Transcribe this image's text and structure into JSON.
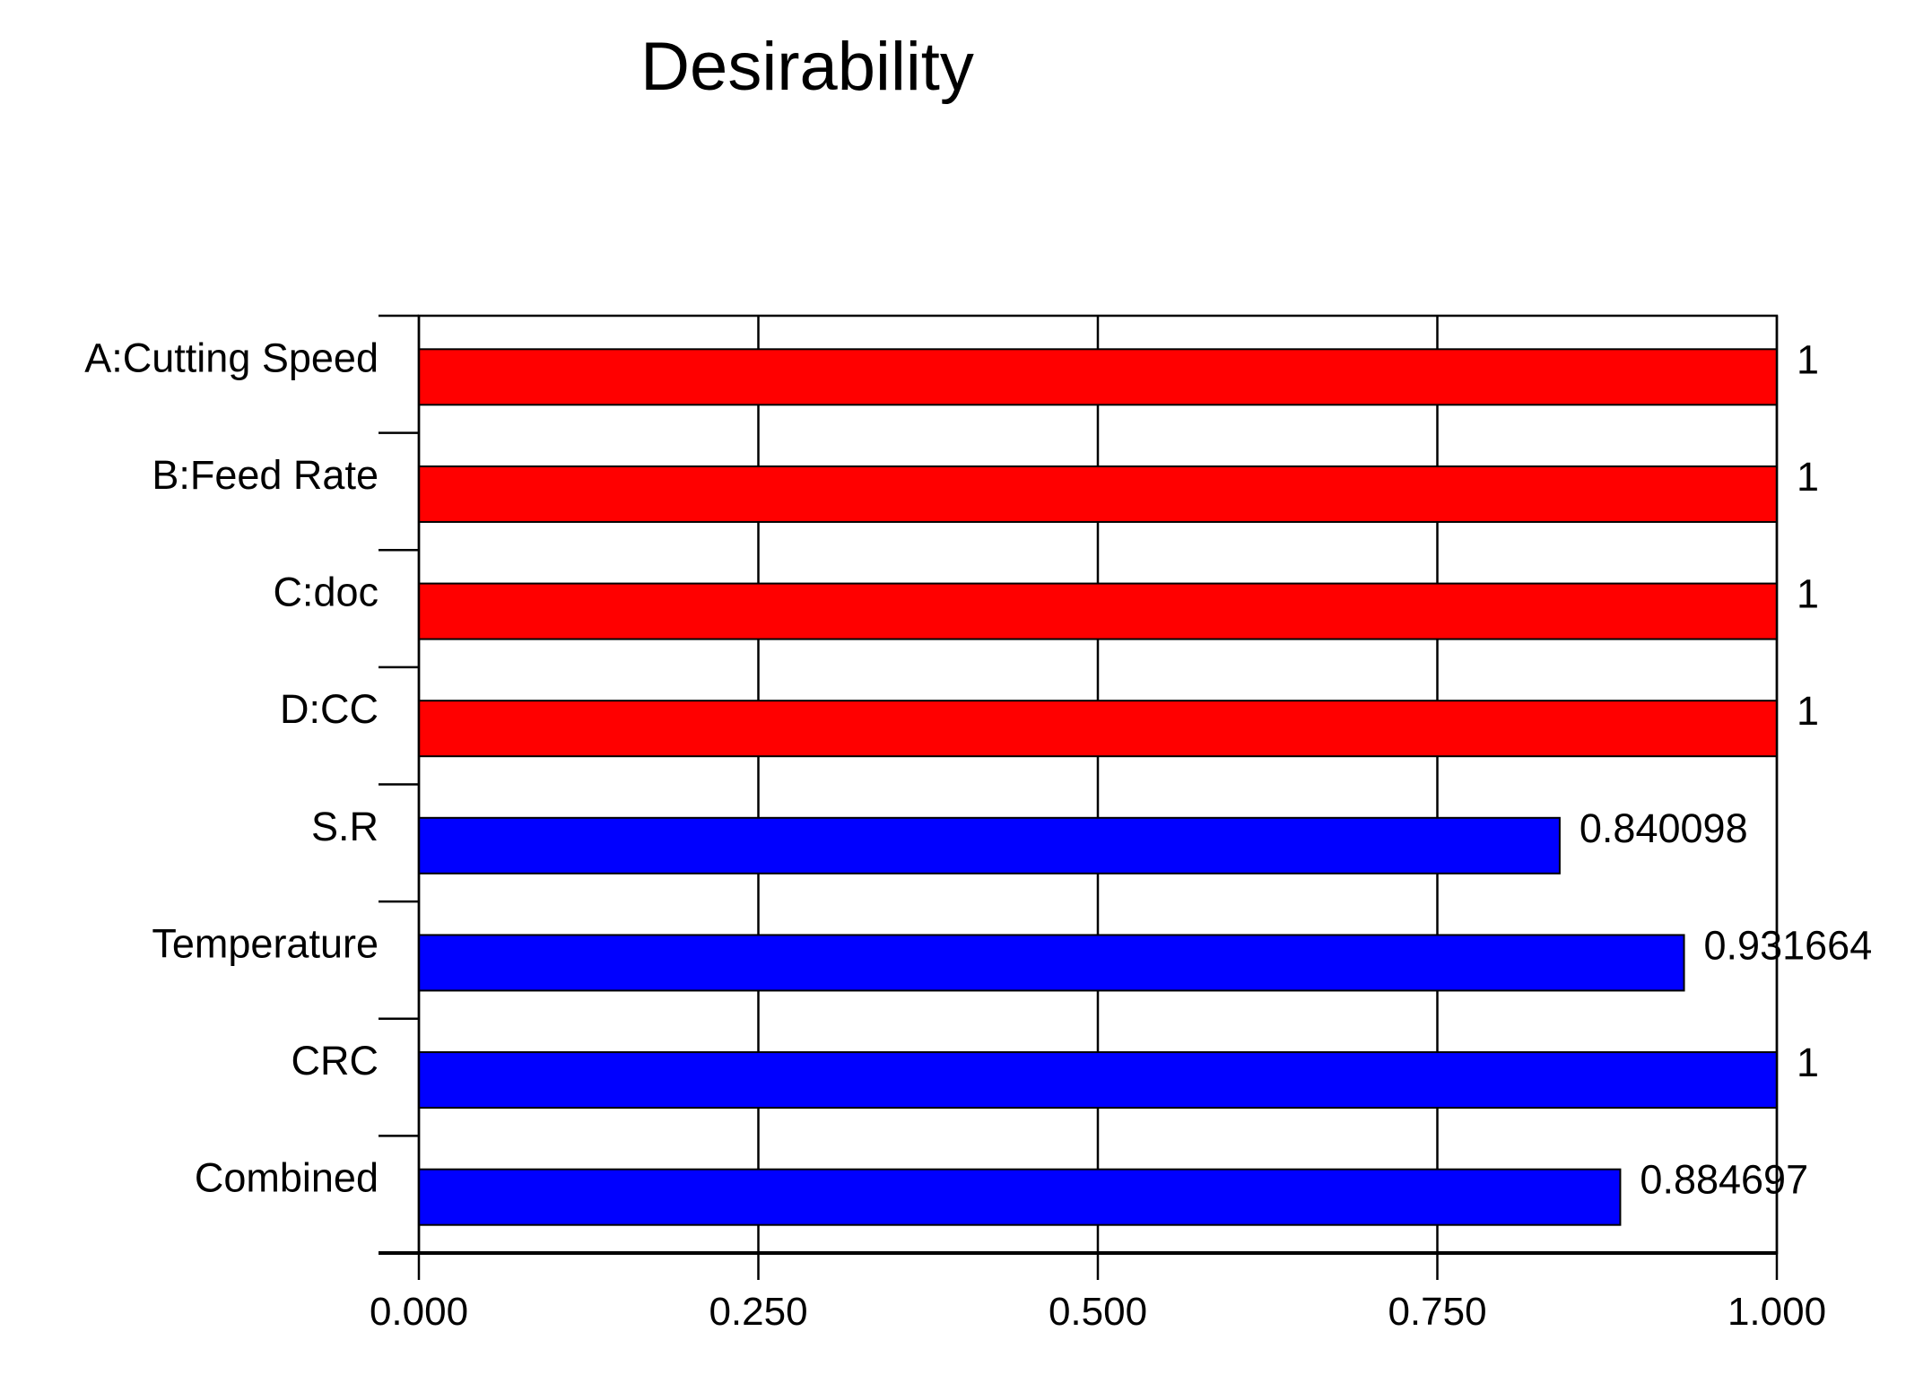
{
  "chart_data": {
    "type": "bar",
    "orientation": "horizontal",
    "title": "Desirability",
    "xlabel": "",
    "ylabel": "",
    "xlim": [
      0,
      1
    ],
    "grid": true,
    "categories": [
      "A:Cutting Speed",
      "B:Feed Rate",
      "C:doc",
      "D:CC",
      "S.R",
      "Temperature",
      "CRC",
      "Combined"
    ],
    "values": [
      1,
      1,
      1,
      1,
      0.840098,
      0.931664,
      1,
      0.884697
    ],
    "value_labels": [
      "1",
      "1",
      "1",
      "1",
      "0.840098",
      "0.931664",
      "1",
      "0.884697"
    ],
    "bar_colors": [
      "#ff0000",
      "#ff0000",
      "#ff0000",
      "#ff0000",
      "#0000ff",
      "#0000ff",
      "#0000ff",
      "#0000ff"
    ],
    "x_ticks": [
      0,
      0.25,
      0.5,
      0.75,
      1
    ],
    "x_tick_labels": [
      "0.000",
      "0.250",
      "0.500",
      "0.750",
      "1.000"
    ]
  }
}
